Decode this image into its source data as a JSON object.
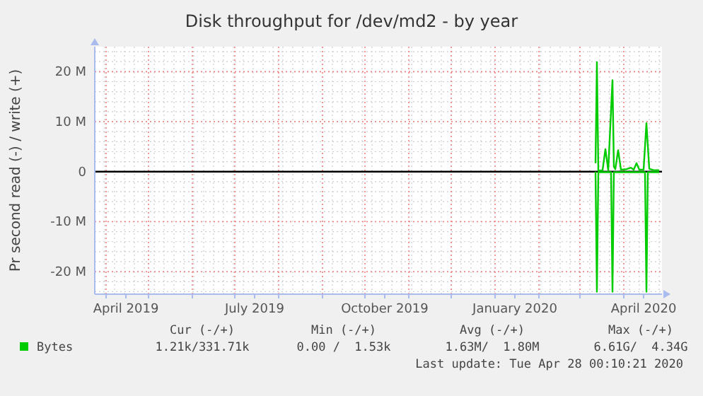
{
  "chart_data": {
    "type": "line",
    "title": "Disk throughput for /dev/md2 - by year",
    "ylabel": "Pr second read (-) / write (+)",
    "xlim": [
      "2019-03-24",
      "2020-04-28"
    ],
    "xticks": [
      {
        "value": "2019-04-01",
        "label": null
      },
      {
        "value": "2019-05-01",
        "label": null
      },
      {
        "value": "2019-06-01",
        "label": null
      },
      {
        "value": "2019-07-01",
        "label": null
      },
      {
        "value": "2019-08-01",
        "label": null
      },
      {
        "value": "2019-09-01",
        "label": null
      },
      {
        "value": "2019-10-01",
        "label": null
      },
      {
        "value": "2019-11-01",
        "label": null
      },
      {
        "value": "2019-12-01",
        "label": null
      },
      {
        "value": "2020-01-01",
        "label": null
      },
      {
        "value": "2020-02-01",
        "label": null
      },
      {
        "value": "2020-03-01",
        "label": null
      },
      {
        "value": "2020-04-01",
        "label": null
      },
      {
        "value": "2019-04-15",
        "label": "April 2019"
      },
      {
        "value": "2019-07-15",
        "label": "July 2019"
      },
      {
        "value": "2019-10-15",
        "label": "October 2019"
      },
      {
        "value": "2020-01-15",
        "label": "January 2020"
      },
      {
        "value": "2020-04-15",
        "label": "April 2020"
      }
    ],
    "ylim": [
      -24500000,
      25000000
    ],
    "yticks": [
      {
        "value": -20000000,
        "label": "-20 M"
      },
      {
        "value": -10000000,
        "label": "-10 M"
      },
      {
        "value": 0,
        "label": "0"
      },
      {
        "value": 10000000,
        "label": "10 M"
      },
      {
        "value": 20000000,
        "label": "20 M"
      }
    ],
    "grid": true,
    "legend": "bottom",
    "line_style": "solid",
    "ref_lines": [
      {
        "axis": "y",
        "value": 0,
        "color": "#000000"
      }
    ],
    "series": [
      {
        "name": "Bytes",
        "color": "#00cc00",
        "x": [
          "2020-03-12",
          "2020-03-13",
          "2020-03-14",
          "2020-03-17",
          "2020-03-19",
          "2020-03-21",
          "2020-03-24",
          "2020-03-25",
          "2020-03-26",
          "2020-03-28",
          "2020-03-30",
          "2020-04-03",
          "2020-04-06",
          "2020-04-08",
          "2020-04-10",
          "2020-04-12",
          "2020-04-15",
          "2020-04-17",
          "2020-04-19",
          "2020-04-22",
          "2020-04-26"
        ],
        "values": [
          1700000,
          21900000,
          200000,
          300000,
          4500000,
          300000,
          18300000,
          1000000,
          500000,
          4300000,
          400000,
          500000,
          800000,
          400000,
          1700000,
          400000,
          400000,
          9700000,
          600000,
          300000,
          300000
        ]
      },
      {
        "color": "#00cc00",
        "x": [
          "2020-03-12",
          "2020-03-13",
          "2020-03-14",
          "2020-03-23",
          "2020-03-24",
          "2020-03-25",
          "2020-04-16",
          "2020-04-17",
          "2020-04-18",
          "2020-04-26"
        ],
        "values": [
          0,
          -24000000,
          -100000,
          -100000,
          -24000000,
          -100000,
          -100000,
          -24000000,
          -100000,
          -100000
        ]
      }
    ],
    "annotations": [
      "Cur (-/+)",
      "Min (-/+)",
      "Avg (-/+)",
      "Max (-/+)",
      "1.21k/331.71k",
      "0.00 /  1.53k",
      "1.63M/  1.80M",
      "6.61G/  4.34G",
      "Last update: Tue Apr 28 00:10:21 2020"
    ]
  }
}
